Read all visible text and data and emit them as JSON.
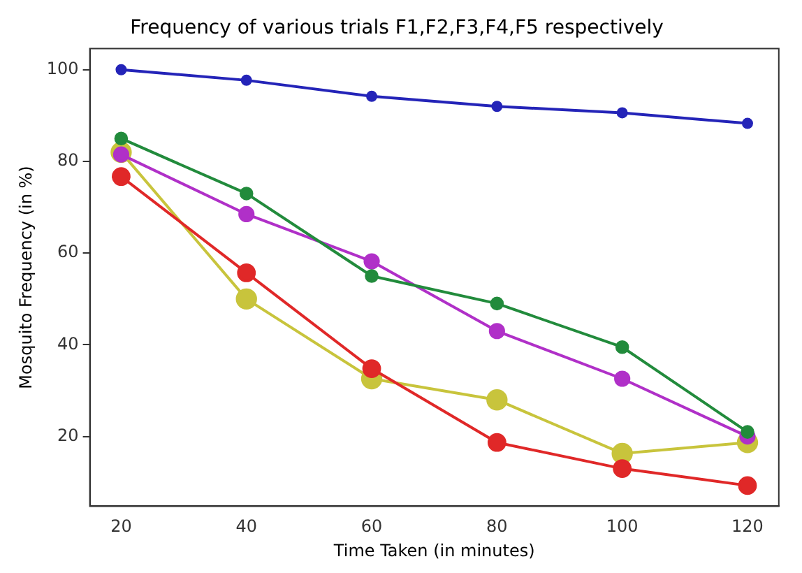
{
  "chart_data": {
    "type": "line",
    "title": "Frequency of various trials F1,F2,F3,F4,F5 respectively",
    "xlabel": "Time Taken (in minutes)",
    "ylabel": "Mosquito Frequency (in %)",
    "x": [
      20,
      40,
      60,
      80,
      100,
      120
    ],
    "series": [
      {
        "color": "#2424b8",
        "values": [
          100,
          97.7,
          94.2,
          92,
          90.6,
          88.3
        ]
      },
      {
        "color": "#228b3c",
        "values": [
          85,
          73,
          55,
          49,
          39.5,
          21
        ]
      },
      {
        "color": "#b030c8",
        "values": [
          81.5,
          68.5,
          58.2,
          43,
          32.6,
          20
        ]
      },
      {
        "color": "#e02828",
        "values": [
          76.7,
          55.7,
          34.8,
          18.7,
          13,
          9.3
        ]
      },
      {
        "color": "#c8c43c",
        "values": [
          82,
          50,
          32.6,
          28,
          16.3,
          18.7
        ]
      }
    ],
    "xlim": [
      15,
      125
    ],
    "xticks": [
      20,
      40,
      60,
      80,
      100,
      120
    ],
    "ylim": [
      4.8,
      104.6
    ],
    "yticks": [
      20,
      40,
      60,
      80,
      100
    ],
    "grid": false,
    "legend": false,
    "marker": "circle",
    "line_style": "solid"
  }
}
